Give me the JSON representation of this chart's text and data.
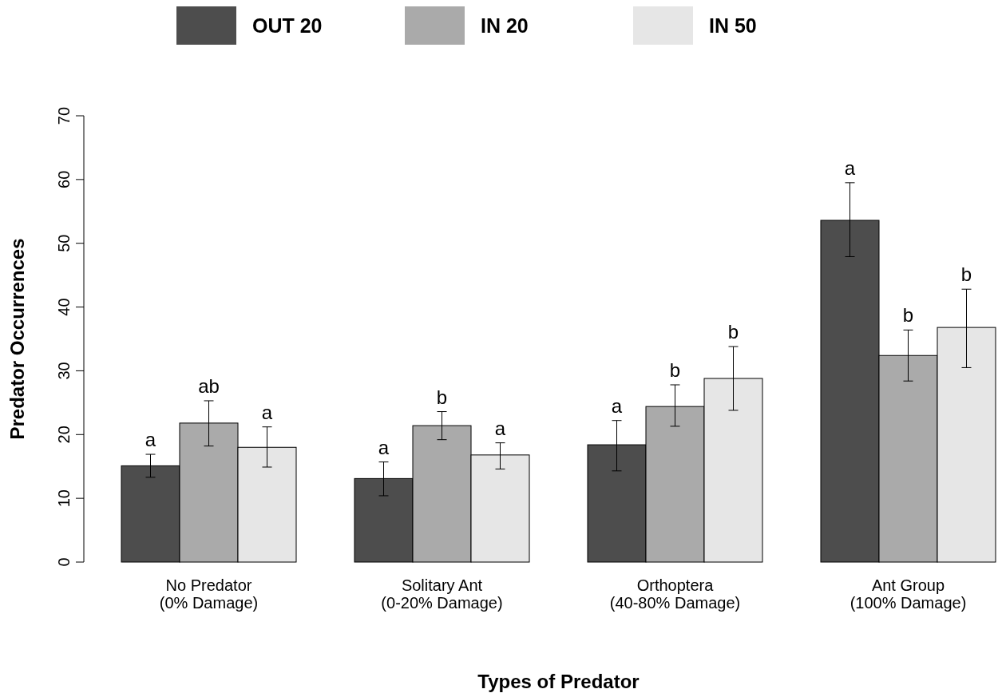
{
  "chart_data": {
    "type": "bar",
    "xlabel": "Types of Predator",
    "ylabel": "Predator Occurrences",
    "categories": [
      "No Predator\n(0% Damage)",
      "Solitary Ant\n(0-20% Damage)",
      "Orthoptera\n(40-80% Damage)",
      "Ant Group\n(100% Damage)"
    ],
    "series": [
      {
        "name": "OUT 20",
        "color": "#4d4d4d",
        "values": [
          15.1,
          13.1,
          18.4,
          53.6
        ],
        "errors": [
          [
            13.3,
            16.9
          ],
          [
            10.4,
            15.7
          ],
          [
            14.3,
            22.2
          ],
          [
            47.9,
            59.5
          ]
        ],
        "value_labels": [
          "a",
          "a",
          "a",
          "a"
        ]
      },
      {
        "name": "IN 20",
        "color": "#aaaaaa",
        "values": [
          21.8,
          21.4,
          24.4,
          32.4
        ],
        "errors": [
          [
            18.2,
            25.3
          ],
          [
            19.2,
            23.6
          ],
          [
            21.3,
            27.8
          ],
          [
            28.4,
            36.4
          ]
        ],
        "value_labels": [
          "ab",
          "b",
          "b",
          "b"
        ]
      },
      {
        "name": "IN 50",
        "color": "#e6e6e6",
        "values": [
          18.0,
          16.8,
          28.8,
          36.8
        ],
        "errors": [
          [
            14.9,
            21.2
          ],
          [
            14.6,
            18.7
          ],
          [
            23.8,
            33.8
          ],
          [
            30.5,
            42.8
          ]
        ],
        "value_labels": [
          "a",
          "a",
          "b",
          "b"
        ]
      }
    ],
    "ylim": [
      0,
      70
    ],
    "yticks": [
      0,
      10,
      20,
      30,
      40,
      50,
      60,
      70
    ],
    "legend": "top"
  }
}
